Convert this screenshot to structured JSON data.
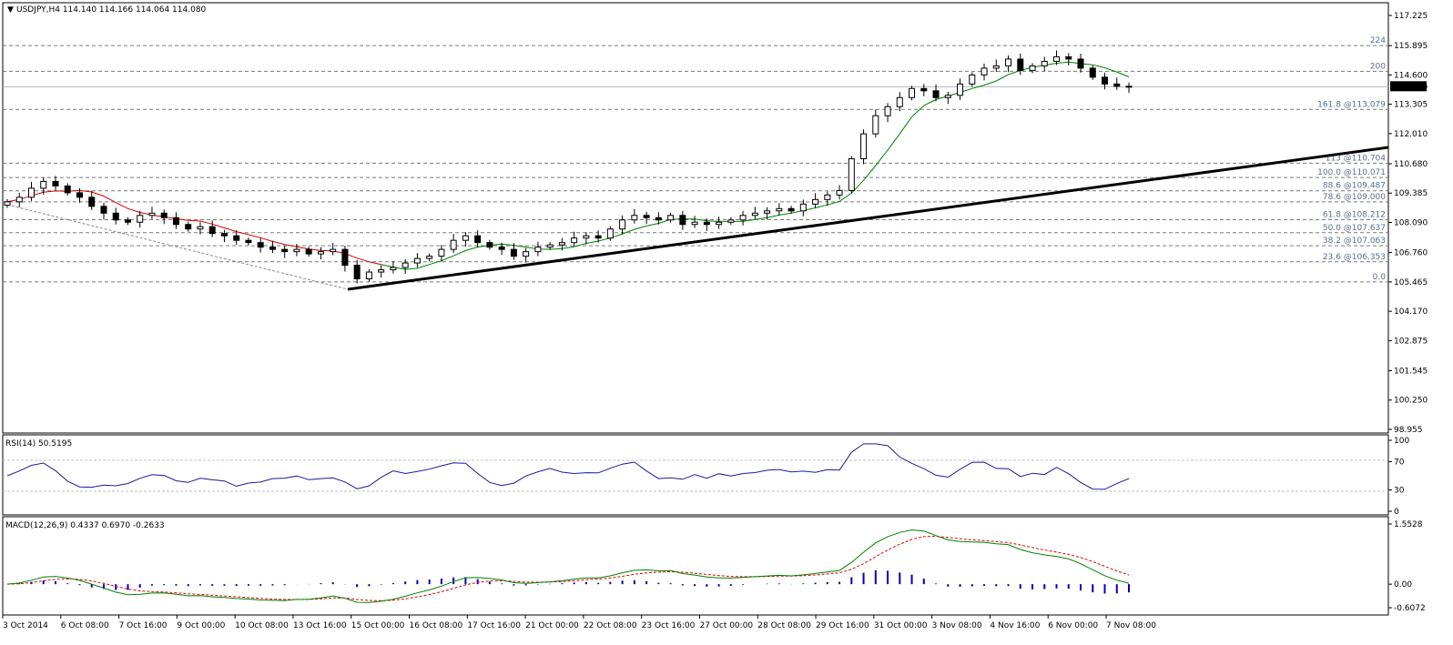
{
  "header": {
    "symbol": "USDJPY,H4",
    "open": "114.140",
    "high": "114.166",
    "low": "114.064",
    "close": "114.080",
    "menu_icon": "triangle-down-icon"
  },
  "price_scale": {
    "labels": [
      "117.225",
      "115.895",
      "114.600",
      "113.305",
      "112.010",
      "110.680",
      "109.385",
      "108.090",
      "106.760",
      "105.465",
      "104.170",
      "102.875",
      "101.545",
      "100.250",
      "98.955"
    ],
    "min": 98.955,
    "max": 117.225,
    "current_price_label": "114.080"
  },
  "fib_levels": [
    {
      "label": "224",
      "price": 115.895
    },
    {
      "label": "200",
      "price": 114.76
    },
    {
      "label": "161.8  @113.079",
      "price": 113.079
    },
    {
      "label": "113  @110.704",
      "price": 110.704
    },
    {
      "label": "100.0  @110.071",
      "price": 110.071
    },
    {
      "label": "88.6  @109.487",
      "price": 109.487
    },
    {
      "label": "78.6  @109.000",
      "price": 109.0
    },
    {
      "label": "61.8  @108.212",
      "price": 108.212
    },
    {
      "label": "50.0  @107.637",
      "price": 107.637
    },
    {
      "label": "38.2  @107.063",
      "price": 107.063
    },
    {
      "label": "23.6  @106.353",
      "price": 106.353
    },
    {
      "label": "0.0",
      "price": 105.465
    }
  ],
  "rsi": {
    "title": "RSI(14) 50.5195",
    "scale_labels": [
      "100",
      "70",
      "30",
      "0"
    ],
    "levels": [
      70,
      30
    ]
  },
  "macd": {
    "title": "MACD(12,26,9) 0.4337 0.6970 -0.2633",
    "scale_labels": [
      "1.5528",
      "0.00",
      "-0.6072"
    ]
  },
  "time_axis": {
    "labels": [
      "3 Oct 2014",
      "6 Oct 08:00",
      "7 Oct 16:00",
      "9 Oct 00:00",
      "10 Oct 08:00",
      "13 Oct 16:00",
      "15 Oct 00:00",
      "16 Oct 08:00",
      "17 Oct 16:00",
      "21 Oct 00:00",
      "22 Oct 08:00",
      "23 Oct 16:00",
      "27 Oct 00:00",
      "28 Oct 08:00",
      "29 Oct 16:00",
      "31 Oct 00:00",
      "3 Nov 08:00",
      "4 Nov 16:00",
      "6 Nov 00:00",
      "7 Nov 08:00"
    ]
  },
  "colors": {
    "grid": "#c0c0c0",
    "fib_line": "#7a7a7a",
    "candle": "#000000",
    "ma_red": "#d40000",
    "ma_green": "#008000",
    "rsi_line": "#1a1aa0",
    "macd_main": "#008000",
    "macd_signal": "#e00000",
    "macd_hist": "#0000c0",
    "price_tag_bg": "#000000",
    "price_tag_text": "#ffffff"
  },
  "chart_data": {
    "type": "candlestick",
    "symbol": "USDJPY",
    "timeframe": "H4",
    "close_series": [
      109.0,
      109.2,
      109.6,
      109.9,
      109.7,
      109.4,
      109.2,
      108.8,
      108.5,
      108.2,
      108.1,
      108.4,
      108.5,
      108.3,
      108.0,
      107.8,
      107.9,
      107.6,
      107.5,
      107.3,
      107.2,
      107.0,
      106.9,
      106.8,
      106.9,
      106.7,
      106.8,
      106.9,
      106.2,
      105.6,
      105.9,
      106.0,
      106.1,
      106.3,
      106.5,
      106.6,
      106.9,
      107.3,
      107.5,
      107.2,
      107.0,
      106.9,
      106.6,
      106.8,
      107.0,
      107.1,
      107.2,
      107.4,
      107.5,
      107.4,
      107.8,
      108.2,
      108.4,
      108.3,
      108.2,
      108.4,
      108.0,
      108.1,
      108.0,
      108.1,
      108.2,
      108.4,
      108.5,
      108.6,
      108.7,
      108.6,
      108.9,
      109.1,
      109.3,
      109.5,
      110.9,
      112.0,
      112.8,
      113.2,
      113.6,
      114.0,
      113.9,
      113.6,
      113.7,
      114.2,
      114.6,
      114.9,
      115.0,
      115.3,
      114.8,
      115.0,
      115.2,
      115.4,
      115.3,
      114.9,
      114.5,
      114.2,
      114.1,
      114.08
    ]
  }
}
